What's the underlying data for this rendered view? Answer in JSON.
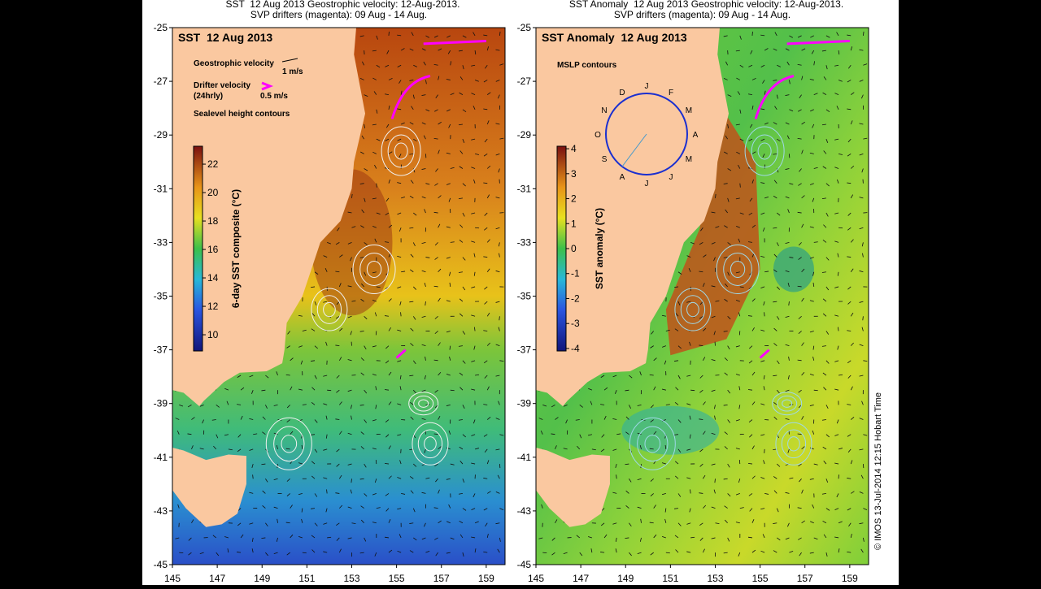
{
  "maps": [
    {
      "header": [
        "SST  12 Aug 2013 Geostrophic velocity: 12-Aug-2013.",
        "SVP drifters (magenta): 09 Aug - 14 Aug."
      ],
      "title": "SST  12 Aug 2013",
      "legend": {
        "geostrophic": "Geostrophic velocity",
        "geostrophic_scale": "1 m/s",
        "drifter": "Drifter velocity",
        "drifter_interval": "(24hrly)",
        "drifter_scale": "0.5 m/s",
        "contours": "Sealevel height contours"
      },
      "colorbar": {
        "label": "6-day SST composite (°C)",
        "range": [
          8.86,
          23.26
        ],
        "ticks": [
          10,
          12,
          14,
          16,
          18,
          20,
          22
        ]
      }
    },
    {
      "header": [
        "SST Anomaly  12 Aug 2013 Geostrophic velocity: 12-Aug-2013.",
        "SVP drifters (magenta): 09 Aug - 14 Aug."
      ],
      "title": "SST Anomaly  12 Aug 2013",
      "legend": {
        "contours": "MSLP contours",
        "months": [
          "J",
          "F",
          "M",
          "A",
          "M",
          "J",
          "J",
          "A",
          "S",
          "O",
          "N",
          "D"
        ]
      },
      "colorbar": {
        "label": "SST anomaly (°C)",
        "range": [
          -4.1,
          4.1
        ],
        "ticks": [
          -4,
          -3,
          -2,
          -1,
          0,
          1,
          2,
          3,
          4
        ]
      }
    }
  ],
  "lat": {
    "range": [
      -45,
      -25
    ],
    "ticks": [
      -25,
      -27,
      -29,
      -31,
      -33,
      -35,
      -37,
      -39,
      -41,
      -43,
      -45
    ]
  },
  "lon": {
    "range": [
      145,
      159.84
    ],
    "ticks": [
      145,
      147,
      149,
      151,
      153,
      155,
      157,
      159
    ]
  },
  "credit": "© IMOS 13-Jul-2014 12:15 Hobart Time"
}
